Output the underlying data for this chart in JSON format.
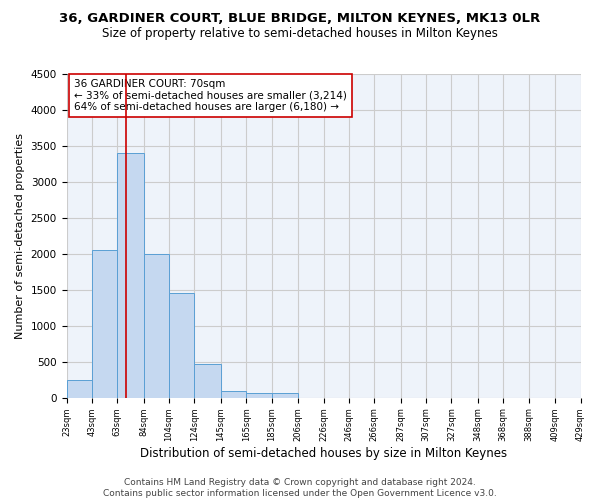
{
  "title": "36, GARDINER COURT, BLUE BRIDGE, MILTON KEYNES, MK13 0LR",
  "subtitle": "Size of property relative to semi-detached houses in Milton Keynes",
  "xlabel": "Distribution of semi-detached houses by size in Milton Keynes",
  "ylabel": "Number of semi-detached properties",
  "footer_line1": "Contains HM Land Registry data © Crown copyright and database right 2024.",
  "footer_line2": "Contains public sector information licensed under the Open Government Licence v3.0.",
  "annotation_title": "36 GARDINER COURT: 70sqm",
  "annotation_line1": "← 33% of semi-detached houses are smaller (3,214)",
  "annotation_line2": "64% of semi-detached houses are larger (6,180) →",
  "bar_left_edges": [
    23,
    43,
    63,
    84,
    104,
    124,
    145,
    165,
    185,
    206,
    226,
    246,
    266,
    287,
    307,
    327,
    348,
    368,
    388,
    409
  ],
  "bar_heights": [
    250,
    2050,
    3400,
    2000,
    1450,
    470,
    100,
    60,
    60,
    0,
    0,
    0,
    0,
    0,
    0,
    0,
    0,
    0,
    0,
    0
  ],
  "bin_edges": [
    23,
    43,
    63,
    84,
    104,
    124,
    145,
    165,
    185,
    206,
    226,
    246,
    266,
    287,
    307,
    327,
    348,
    368,
    388,
    409,
    429
  ],
  "bar_color": "#c5d8f0",
  "bar_edge_color": "#5a9fd4",
  "vline_color": "#cc0000",
  "vline_x": 70,
  "annotation_box_color": "#cc0000",
  "ylim": [
    0,
    4500
  ],
  "yticks": [
    0,
    500,
    1000,
    1500,
    2000,
    2500,
    3000,
    3500,
    4000,
    4500
  ],
  "grid_color": "#cccccc",
  "bg_color": "#eef3fa",
  "tick_labels": [
    "23sqm",
    "43sqm",
    "63sqm",
    "84sqm",
    "104sqm",
    "124sqm",
    "145sqm",
    "165sqm",
    "185sqm",
    "206sqm",
    "226sqm",
    "246sqm",
    "266sqm",
    "287sqm",
    "307sqm",
    "327sqm",
    "348sqm",
    "368sqm",
    "388sqm",
    "409sqm",
    "429sqm"
  ],
  "title_fontsize": 9.5,
  "subtitle_fontsize": 8.5,
  "xlabel_fontsize": 8.5,
  "ylabel_fontsize": 8,
  "annotation_fontsize": 7.5,
  "footer_fontsize": 6.5,
  "ytick_fontsize": 7.5,
  "xtick_fontsize": 6
}
